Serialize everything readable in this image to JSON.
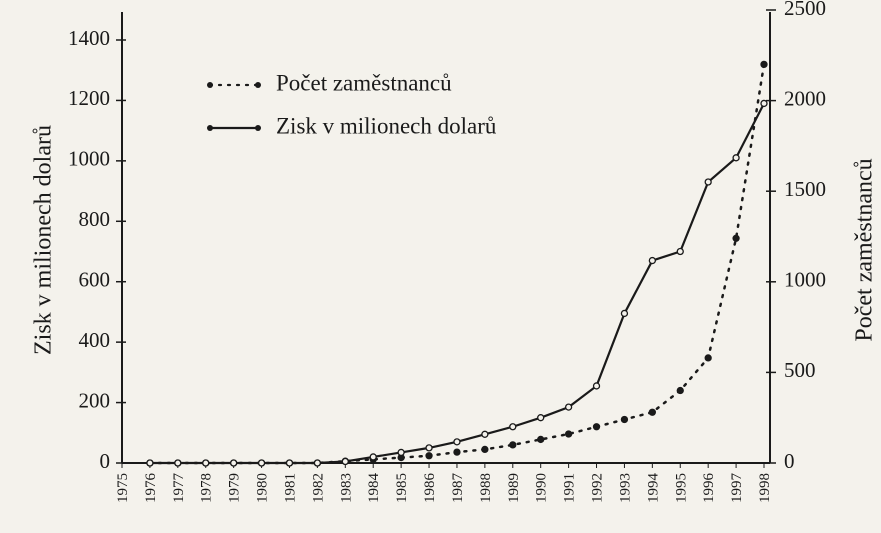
{
  "chart_data": {
    "type": "line",
    "categories": [
      "1975",
      "1976",
      "1977",
      "1978",
      "1979",
      "1980",
      "1981",
      "1982",
      "1983",
      "1984",
      "1985",
      "1986",
      "1987",
      "1988",
      "1989",
      "1990",
      "1991",
      "1992",
      "1993",
      "1994",
      "1995",
      "1996",
      "1997",
      "1998"
    ],
    "series": [
      {
        "name": "Počet zaměstnanců",
        "color": "#1a1a1a",
        "axis": "y2",
        "style": "dotted",
        "values": [
          null,
          0,
          0,
          0,
          0,
          0,
          0,
          0,
          10,
          20,
          30,
          40,
          60,
          75,
          100,
          130,
          160,
          200,
          240,
          280,
          400,
          580,
          1240,
          2200
        ]
      },
      {
        "name": "Zisk v milionech dolarů",
        "color": "#1a1a1a",
        "style": "solid",
        "values": [
          null,
          0,
          0,
          0,
          0,
          0,
          0,
          0,
          5,
          20,
          35,
          50,
          70,
          95,
          120,
          150,
          185,
          255,
          495,
          670,
          700,
          930,
          1010,
          1190
        ]
      }
    ],
    "ylabel": "Zisk v milionech dolarů",
    "y2label": "Počet zaměstnanců",
    "ylim": [
      0,
      1400
    ],
    "yticks": [
      0,
      200,
      400,
      600,
      800,
      1000,
      1200,
      1400
    ],
    "y2lim": [
      0,
      2500
    ],
    "y2ticks": [
      0,
      500,
      1000,
      1500,
      2000,
      2500
    ],
    "legend": "upper left"
  }
}
